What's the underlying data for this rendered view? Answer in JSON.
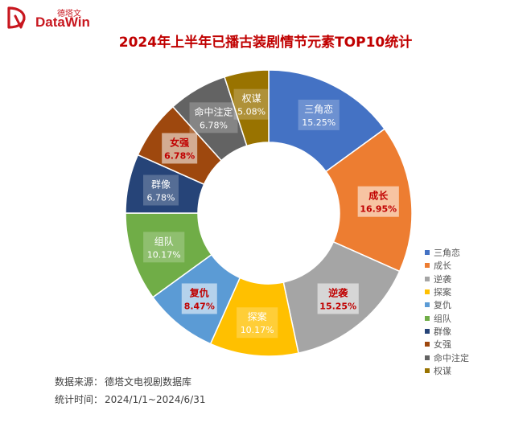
{
  "logo": {
    "name_cn": "德塔文",
    "name_en": "DataWin"
  },
  "chart_data": {
    "type": "pie",
    "donut": true,
    "title": "2024年上半年已播古装剧情节元素TOP10统计",
    "slices": [
      {
        "name": "三角恋",
        "value": 15.25,
        "label": "15.25%",
        "color": "#4472c4"
      },
      {
        "name": "成长",
        "value": 16.95,
        "label": "16.95%",
        "color": "#ed7d31"
      },
      {
        "name": "逆袭",
        "value": 15.25,
        "label": "15.25%",
        "color": "#a5a5a5"
      },
      {
        "name": "探案",
        "value": 10.17,
        "label": "10.17%",
        "color": "#ffc000"
      },
      {
        "name": "复仇",
        "value": 8.47,
        "label": "8.47%",
        "color": "#5b9bd5"
      },
      {
        "name": "组队",
        "value": 10.17,
        "label": "10.17%",
        "color": "#70ad47"
      },
      {
        "name": "群像",
        "value": 6.78,
        "label": "6.78%",
        "color": "#264478"
      },
      {
        "name": "女强",
        "value": 6.78,
        "label": "6.78%",
        "color": "#9e480e"
      },
      {
        "name": "命中注定",
        "value": 6.78,
        "label": "6.78%",
        "color": "#636363"
      },
      {
        "name": "权谋",
        "value": 5.08,
        "label": "5.08%",
        "color": "#997300"
      }
    ],
    "legend_position": "right-bottom",
    "label_text_colors": [
      "#ffffff",
      "#c00000",
      "#c00000",
      "#ffffff",
      "#c00000",
      "#ffffff",
      "#ffffff",
      "#c00000",
      "#ffffff",
      "#ffffff"
    ]
  },
  "footer": {
    "source_label": "数据来源：",
    "source_value": "德塔文电视剧数据库",
    "period_label": "统计时间：",
    "period_value": "2024/1/1~2024/6/31"
  }
}
